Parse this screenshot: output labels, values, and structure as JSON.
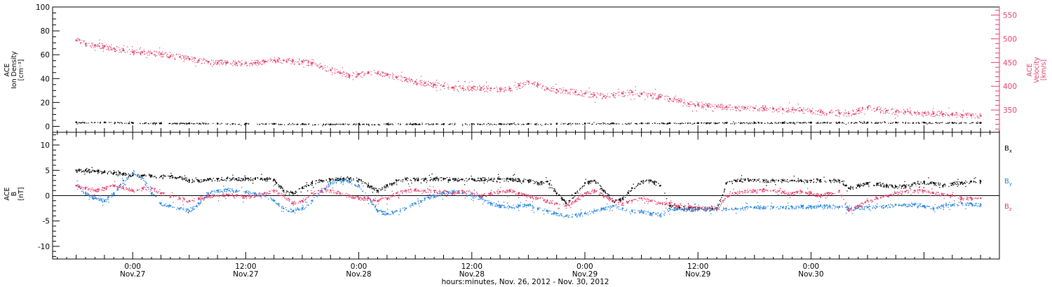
{
  "chart_data": [
    {
      "type": "scatter",
      "panel": "top",
      "ylabel_lines": [
        "ACE",
        "Ion Density",
        "[cm⁻³]"
      ],
      "y2label_lines": [
        "ACE",
        "Velocity",
        "[km/s]"
      ],
      "ylim": [
        -5,
        100
      ],
      "yticks": [
        0,
        20,
        40,
        60,
        80,
        100
      ],
      "y2lim": [
        303,
        567
      ],
      "y2ticks": [
        350,
        400,
        450,
        500,
        550
      ],
      "series": [
        {
          "axis": "left",
          "color": "#000000",
          "x": [
            -6,
            -3,
            0,
            3,
            6,
            9,
            12,
            15,
            18,
            21,
            24,
            27,
            30,
            33,
            36,
            39,
            42,
            45,
            48,
            51,
            54,
            57,
            60,
            63,
            66,
            69,
            72,
            75,
            78,
            81,
            84,
            87,
            90
          ],
          "y": [
            3.5,
            3.4,
            3.0,
            2.8,
            2.6,
            2.4,
            2.3,
            2.2,
            2.0,
            1.8,
            1.9,
            2.0,
            2.1,
            2.0,
            2.0,
            2.1,
            2.2,
            2.3,
            2.5,
            2.6,
            2.7,
            2.8,
            2.9,
            3.0,
            3.1,
            3.2,
            3.3,
            3.3,
            3.3,
            3.3,
            3.2,
            3.1,
            3.1
          ]
        },
        {
          "axis": "right",
          "color": "#e63b68",
          "x": [
            -6,
            -5,
            -4,
            -3,
            -2,
            -1,
            0,
            1,
            2,
            3,
            4,
            5,
            6,
            7,
            8,
            9,
            10,
            11,
            12,
            13,
            14,
            15,
            16,
            17,
            18,
            19,
            20,
            21,
            22,
            23,
            24,
            25,
            26,
            27,
            28,
            29,
            30,
            31,
            32,
            33,
            34,
            35,
            36,
            37,
            38,
            39,
            40,
            41,
            42,
            43,
            44,
            45,
            46,
            47,
            48,
            49,
            50,
            51,
            52,
            53,
            54,
            55,
            56,
            57,
            58,
            59,
            60,
            61,
            62,
            63,
            64,
            65,
            66,
            67,
            68,
            69,
            70,
            71,
            72,
            73,
            74,
            75,
            76,
            77,
            78,
            79,
            80,
            81,
            82,
            83,
            84,
            85,
            86,
            87,
            88,
            89,
            90
          ],
          "y": [
            497,
            490,
            487,
            485,
            480,
            476,
            472,
            472,
            470,
            468,
            464,
            462,
            458,
            455,
            452,
            450,
            450,
            449,
            449,
            450,
            452,
            455,
            455,
            454,
            452,
            449,
            442,
            435,
            428,
            423,
            426,
            430,
            428,
            424,
            420,
            414,
            410,
            407,
            404,
            401,
            397,
            396,
            397,
            397,
            396,
            394,
            395,
            402,
            410,
            404,
            396,
            393,
            391,
            388,
            385,
            382,
            379,
            382,
            385,
            388,
            384,
            381,
            378,
            374,
            370,
            363,
            362,
            360,
            358,
            357,
            355,
            355,
            354,
            354,
            353,
            352,
            351,
            350,
            348,
            346,
            345,
            344,
            343,
            349,
            356,
            352,
            349,
            347,
            346,
            345,
            344,
            343,
            342,
            341,
            340,
            339,
            338
          ]
        }
      ]
    },
    {
      "type": "scatter",
      "panel": "bottom",
      "ylabel_lines": [
        "ACE",
        "B",
        "[nT]"
      ],
      "ylim": [
        -12.5,
        12.5
      ],
      "yticks": [
        -10,
        -5,
        0,
        5,
        10
      ],
      "zero_line": true,
      "legend_position": "right",
      "series": [
        {
          "name": "Bx",
          "legend_main": "B",
          "legend_sub": "x",
          "color": "#000000",
          "x": [
            -6,
            -5,
            -4,
            -3,
            -2,
            -1,
            0,
            1,
            2,
            3,
            4,
            5,
            6,
            7,
            8,
            9,
            10,
            11,
            12,
            13,
            14,
            15,
            16,
            17,
            18,
            19,
            20,
            21,
            22,
            23,
            24,
            25,
            26,
            27,
            28,
            29,
            30,
            31,
            32,
            33,
            34,
            35,
            36,
            37,
            38,
            39,
            40,
            41,
            42,
            43,
            44,
            45,
            46,
            47,
            48,
            49,
            50,
            51,
            52,
            53,
            54,
            55,
            56,
            57,
            58,
            59,
            60,
            61,
            62,
            63,
            64,
            65,
            66,
            67,
            68,
            69,
            70,
            71,
            72,
            73,
            74,
            75,
            76,
            77,
            78,
            79,
            80,
            81,
            82,
            83,
            84,
            85,
            86,
            87,
            88,
            89,
            90
          ],
          "y": [
            5.0,
            5.0,
            4.8,
            4.7,
            4.5,
            4.3,
            4.0,
            4.0,
            4.0,
            3.8,
            3.8,
            3.7,
            3.0,
            3.0,
            3.2,
            3.3,
            3.4,
            3.3,
            3.4,
            3.4,
            3.3,
            3.2,
            1.0,
            0.5,
            1.5,
            2.5,
            3.0,
            3.2,
            3.3,
            3.3,
            3.2,
            2.0,
            1.0,
            2.0,
            3.0,
            3.3,
            3.2,
            3.3,
            3.4,
            3.4,
            3.3,
            3.2,
            3.3,
            3.3,
            3.2,
            3.3,
            3.3,
            3.2,
            3.0,
            2.5,
            2.8,
            0.5,
            -1.5,
            0.5,
            2.5,
            3.0,
            1.0,
            -1.0,
            -0.5,
            1.5,
            2.8,
            3.0,
            2.0,
            -2.0,
            -2.3,
            -2.4,
            -2.5,
            -2.6,
            -2.5,
            2.5,
            3.0,
            3.2,
            3.1,
            3.0,
            3.0,
            3.0,
            3.0,
            2.9,
            3.0,
            3.1,
            3.0,
            3.0,
            1.5,
            2.0,
            2.5,
            2.4,
            2.0,
            1.8,
            1.9,
            2.5,
            2.7,
            2.5,
            2.0,
            2.4,
            2.6,
            2.8,
            2.8
          ]
        },
        {
          "name": "By",
          "legend_main": "B",
          "legend_sub": "y",
          "color": "#1f82e0",
          "x": [
            -6,
            -5,
            -4,
            -3,
            -2,
            -1,
            0,
            1,
            2,
            3,
            4,
            5,
            6,
            7,
            8,
            9,
            10,
            11,
            12,
            13,
            14,
            15,
            16,
            17,
            18,
            19,
            20,
            21,
            22,
            23,
            24,
            25,
            26,
            27,
            28,
            29,
            30,
            31,
            32,
            33,
            34,
            35,
            36,
            37,
            38,
            39,
            40,
            41,
            42,
            43,
            44,
            45,
            46,
            47,
            48,
            49,
            50,
            51,
            52,
            53,
            54,
            55,
            56,
            57,
            58,
            59,
            60,
            61,
            62,
            63,
            64,
            65,
            66,
            67,
            68,
            69,
            70,
            71,
            72,
            73,
            74,
            75,
            76,
            77,
            78,
            79,
            80,
            81,
            82,
            83,
            84,
            85,
            86,
            87,
            88,
            89,
            90
          ],
          "y": [
            2.0,
            0.5,
            -0.5,
            -1.0,
            0.5,
            3.0,
            4.5,
            3.5,
            0.5,
            -1.5,
            -2.0,
            -2.5,
            -3.0,
            -1.5,
            0.5,
            1.0,
            1.2,
            1.0,
            0.8,
            0.5,
            0.0,
            -1.0,
            -2.5,
            -3.0,
            -2.5,
            -1.0,
            1.0,
            2.5,
            3.0,
            2.8,
            2.0,
            -0.5,
            -3.0,
            -3.5,
            -3.0,
            -2.5,
            -1.5,
            -0.5,
            0.0,
            0.5,
            0.8,
            0.5,
            0.0,
            -0.5,
            -1.5,
            -2.0,
            -2.2,
            -2.0,
            -1.8,
            -2.5,
            -3.0,
            -3.5,
            -4.0,
            -3.8,
            -3.5,
            -3.0,
            -2.5,
            -2.0,
            -2.5,
            -3.0,
            -3.0,
            -3.5,
            -3.8,
            -2.5,
            -2.6,
            -2.7,
            -2.6,
            -2.5,
            -2.5,
            -2.6,
            -2.5,
            -2.4,
            -2.3,
            -2.2,
            -2.2,
            -2.3,
            -2.2,
            -2.1,
            -2.2,
            -2.0,
            -2.1,
            -2.2,
            -2.5,
            -2.4,
            -2.3,
            -2.2,
            -2.0,
            -1.8,
            -1.8,
            -1.7,
            -2.0,
            -2.5,
            -2.0,
            -1.8,
            -1.5,
            -1.6,
            -1.8
          ]
        },
        {
          "name": "Bz",
          "legend_main": "B",
          "legend_sub": "z",
          "color": "#e63b68",
          "x": [
            -6,
            -5,
            -4,
            -3,
            -2,
            -1,
            0,
            1,
            2,
            3,
            4,
            5,
            6,
            7,
            8,
            9,
            10,
            11,
            12,
            13,
            14,
            15,
            16,
            17,
            18,
            19,
            20,
            21,
            22,
            23,
            24,
            25,
            26,
            27,
            28,
            29,
            30,
            31,
            32,
            33,
            34,
            35,
            36,
            37,
            38,
            39,
            40,
            41,
            42,
            43,
            44,
            45,
            46,
            47,
            48,
            49,
            50,
            51,
            52,
            53,
            54,
            55,
            56,
            57,
            58,
            59,
            60,
            61,
            62,
            63,
            64,
            65,
            66,
            67,
            68,
            69,
            70,
            71,
            72,
            73,
            74,
            75,
            76,
            77,
            78,
            79,
            80,
            81,
            82,
            83,
            84,
            85,
            86,
            87,
            88,
            89,
            90
          ],
          "y": [
            2.0,
            1.5,
            1.0,
            1.5,
            2.0,
            1.5,
            1.0,
            1.5,
            1.5,
            0.5,
            0.0,
            -0.5,
            -1.0,
            -0.5,
            0.0,
            0.0,
            0.2,
            0.0,
            -0.2,
            0.0,
            0.5,
            1.0,
            0.0,
            -1.5,
            -1.0,
            0.5,
            1.0,
            1.0,
            0.5,
            0.0,
            -0.5,
            -0.5,
            -1.0,
            -0.5,
            0.5,
            1.0,
            1.2,
            1.0,
            1.0,
            0.8,
            0.5,
            1.0,
            0.5,
            0.0,
            0.5,
            0.8,
            1.0,
            0.5,
            0.0,
            -0.5,
            -1.0,
            -1.5,
            -2.0,
            -1.0,
            0.5,
            1.0,
            0.0,
            -1.0,
            -1.5,
            -1.0,
            -0.5,
            -1.0,
            -1.5,
            -1.5,
            -2.0,
            -2.2,
            -2.3,
            -2.5,
            -2.5,
            0.0,
            0.5,
            1.0,
            1.0,
            1.2,
            1.0,
            0.8,
            0.5,
            0.8,
            0.5,
            0.0,
            0.5,
            1.0,
            -3.0,
            -2.0,
            -1.0,
            -0.5,
            0.0,
            0.5,
            0.8,
            1.0,
            1.0,
            0.5,
            0.3,
            0.0,
            -0.5,
            -0.5,
            -0.5
          ]
        }
      ]
    }
  ],
  "x_axis": {
    "xlim": [
      -8.5,
      92
    ],
    "major_ticks": [
      0,
      12,
      24,
      36,
      48,
      60,
      72
    ],
    "tick_labels": [
      {
        "time": "0:00",
        "date": "Nov.27"
      },
      {
        "time": "12:00",
        "date": "Nov.27"
      },
      {
        "time": "0:00",
        "date": "Nov.28"
      },
      {
        "time": "12:00",
        "date": "Nov.28"
      },
      {
        "time": "0:00",
        "date": "Nov.29"
      },
      {
        "time": "12:00",
        "date": "Nov.29"
      },
      {
        "time": "0:00",
        "date": "Nov.30"
      }
    ],
    "xlabel": "hours:minutes, Nov. 26, 2012 - Nov. 30, 2012"
  },
  "colors": {
    "axis": "#000000",
    "right_axis": "#e63b68"
  }
}
